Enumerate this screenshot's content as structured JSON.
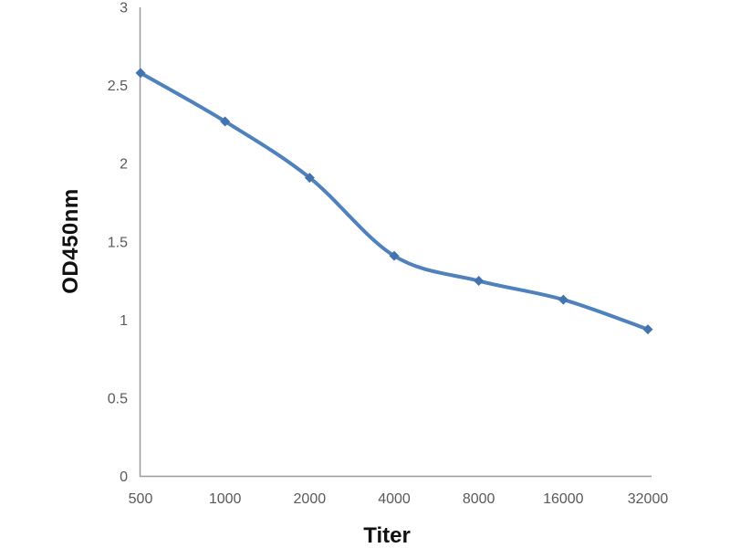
{
  "figure": {
    "description": "ELISA antibody titration curve"
  },
  "chart_data": {
    "type": "line",
    "title": "",
    "xlabel": "Titer",
    "ylabel": "OD450nm",
    "categories": [
      "500",
      "1000",
      "2000",
      "4000",
      "8000",
      "16000",
      "32000"
    ],
    "series": [
      {
        "name": "OD450nm",
        "values": [
          2.58,
          2.27,
          1.91,
          1.41,
          1.25,
          1.13,
          0.94
        ]
      }
    ],
    "ylim": [
      0,
      3
    ],
    "yticks": [
      "0",
      "0.5",
      "1",
      "1.5",
      "2",
      "2.5",
      "3"
    ],
    "grid": false,
    "legend_position": "none",
    "smooth": true,
    "marker_shape": "diamond",
    "line_color": "#4f81bd",
    "marker_color": "#4573ae",
    "axis_color": "#9a9a9a",
    "tick_label_color": "#595959"
  }
}
